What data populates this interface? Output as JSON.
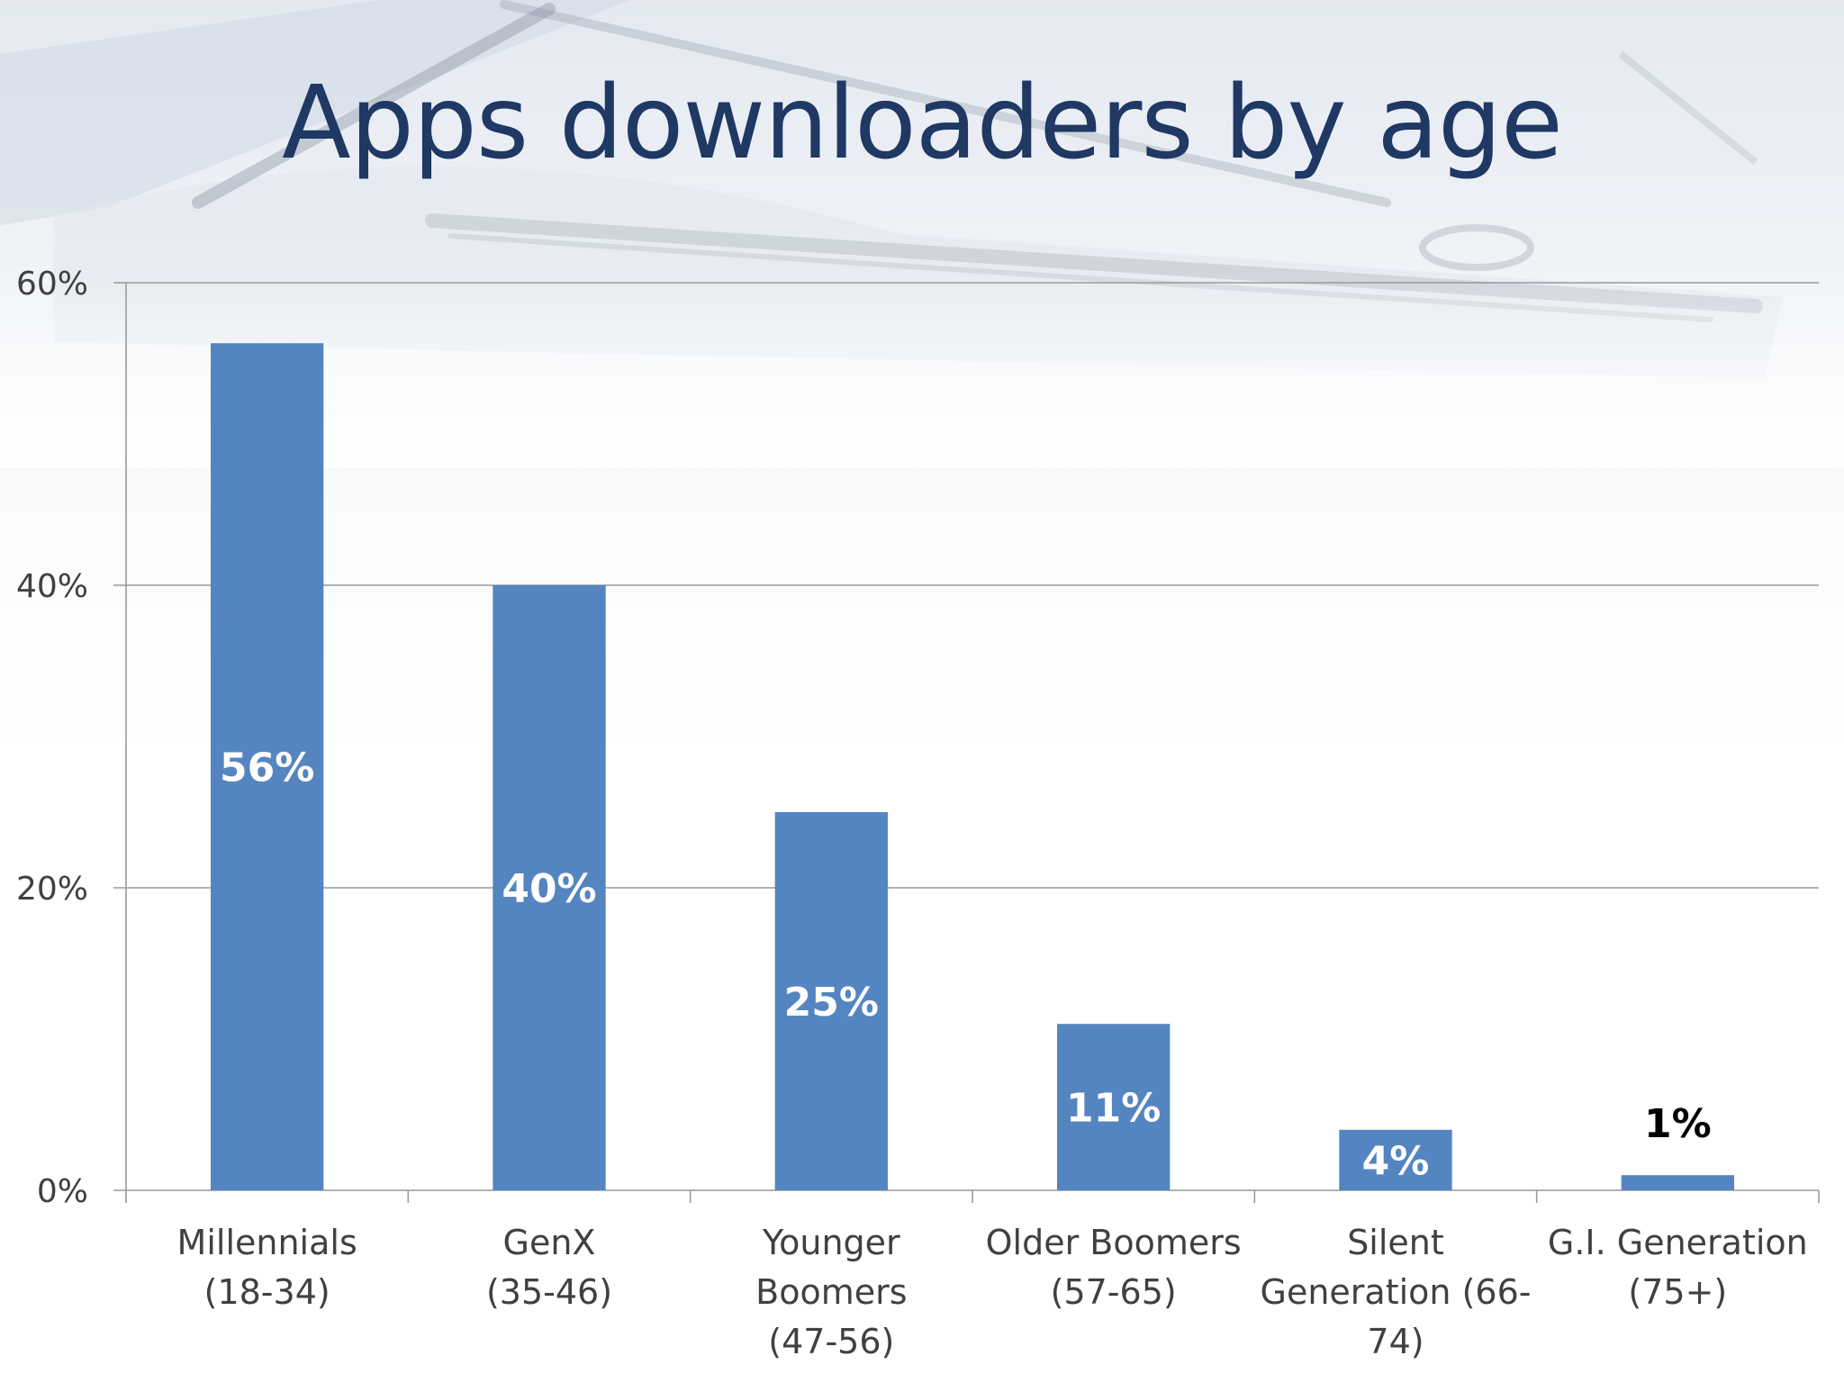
{
  "slide": {
    "title": "Apps downloaders by age"
  },
  "colors": {
    "bar": "#5585c0",
    "title": "#1f3864",
    "gridline": "#9a9a9a",
    "axis_text": "#404040",
    "label_inside": "#ffffff",
    "label_outside": "#000000"
  },
  "chart_data": {
    "type": "bar",
    "title": "Apps downloaders by age",
    "xlabel": "",
    "ylabel": "",
    "ylim": [
      0,
      0.6
    ],
    "yticks": [
      0,
      0.2,
      0.4,
      0.6
    ],
    "ytick_labels": [
      "0%",
      "20%",
      "40%",
      "60%"
    ],
    "grid": true,
    "legend": "none",
    "categories": [
      [
        "Millennials",
        "(18-34)"
      ],
      [
        "GenX",
        "(35-46)"
      ],
      [
        "Younger",
        "Boomers",
        "(47-56)"
      ],
      [
        "Older Boomers",
        "(57-65)"
      ],
      [
        "Silent",
        "Generation (66-",
        "74)"
      ],
      [
        "G.I. Generation",
        "(75+)"
      ]
    ],
    "values": [
      0.56,
      0.4,
      0.25,
      0.11,
      0.04,
      0.01
    ],
    "data_labels": [
      "56%",
      "40%",
      "25%",
      "11%",
      "4%",
      "1%"
    ],
    "label_inside": [
      true,
      true,
      true,
      true,
      true,
      false
    ]
  }
}
